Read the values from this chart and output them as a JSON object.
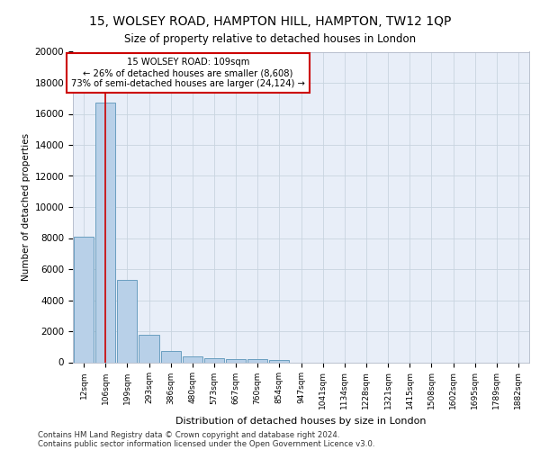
{
  "title_line1": "15, WOLSEY ROAD, HAMPTON HILL, HAMPTON, TW12 1QP",
  "title_line2": "Size of property relative to detached houses in London",
  "xlabel": "Distribution of detached houses by size in London",
  "ylabel": "Number of detached properties",
  "categories": [
    "12sqm",
    "106sqm",
    "199sqm",
    "293sqm",
    "386sqm",
    "480sqm",
    "573sqm",
    "667sqm",
    "760sqm",
    "854sqm",
    "947sqm",
    "1041sqm",
    "1134sqm",
    "1228sqm",
    "1321sqm",
    "1415sqm",
    "1508sqm",
    "1602sqm",
    "1695sqm",
    "1789sqm",
    "1882sqm"
  ],
  "bar_heights": [
    8100,
    16700,
    5300,
    1750,
    700,
    350,
    270,
    210,
    200,
    150,
    0,
    0,
    0,
    0,
    0,
    0,
    0,
    0,
    0,
    0,
    0
  ],
  "bar_color": "#b8d0e8",
  "bar_edge_color": "#6a9fc0",
  "annotation_text_line1": "15 WOLSEY ROAD: 109sqm",
  "annotation_text_line2": "← 26% of detached houses are smaller (8,608)",
  "annotation_text_line3": "73% of semi-detached houses are larger (24,124) →",
  "annotation_box_facecolor": "#ffffff",
  "annotation_box_edgecolor": "#cc0000",
  "vline_color": "#cc0000",
  "vline_x_data": 1.0,
  "ylim": [
    0,
    20000
  ],
  "yticks": [
    0,
    2000,
    4000,
    6000,
    8000,
    10000,
    12000,
    14000,
    16000,
    18000,
    20000
  ],
  "grid_color": "#c8d4e0",
  "bg_color": "#e8eef8",
  "footnote1": "Contains HM Land Registry data © Crown copyright and database right 2024.",
  "footnote2": "Contains public sector information licensed under the Open Government Licence v3.0."
}
